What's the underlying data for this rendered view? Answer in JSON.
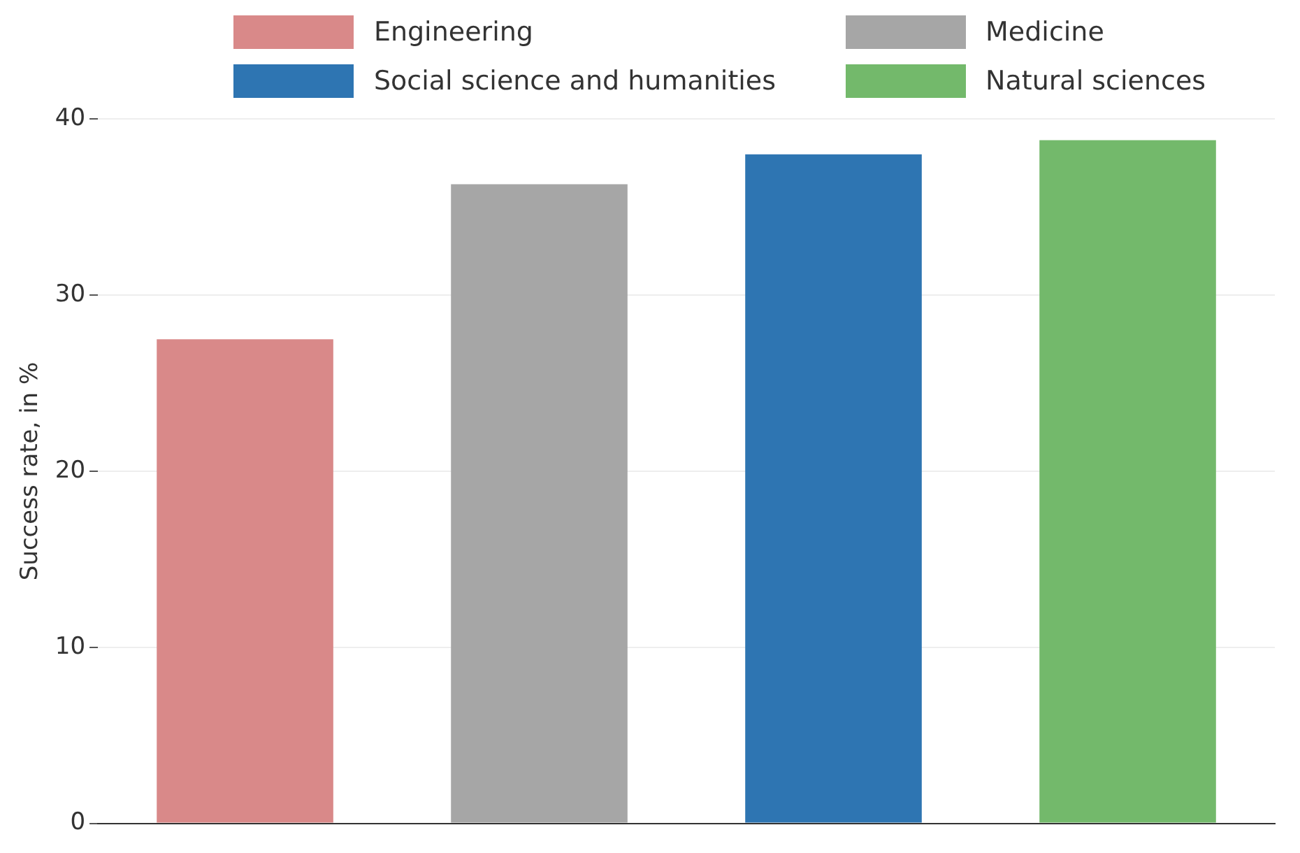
{
  "chart_data": {
    "type": "bar",
    "ylabel": "Success rate, in %",
    "categories": [
      null,
      null,
      null,
      null
    ],
    "series": [
      {
        "name": "Engineering",
        "color": "#d98989",
        "values": [
          27.5,
          null,
          null,
          null
        ]
      },
      {
        "name": "Medicine",
        "color": "#a6a6a6",
        "values": [
          null,
          36.3,
          null,
          null
        ]
      },
      {
        "name": "Social science and humanities",
        "color": "#2e75b2",
        "values": [
          null,
          null,
          38.0,
          null
        ]
      },
      {
        "name": "Natural sciences",
        "color": "#73b96b",
        "values": [
          null,
          null,
          null,
          38.8
        ]
      }
    ],
    "ylim": [
      0,
      40
    ],
    "yticks": [
      0,
      10,
      20,
      30,
      40
    ],
    "grid": "y",
    "legend": "top"
  }
}
